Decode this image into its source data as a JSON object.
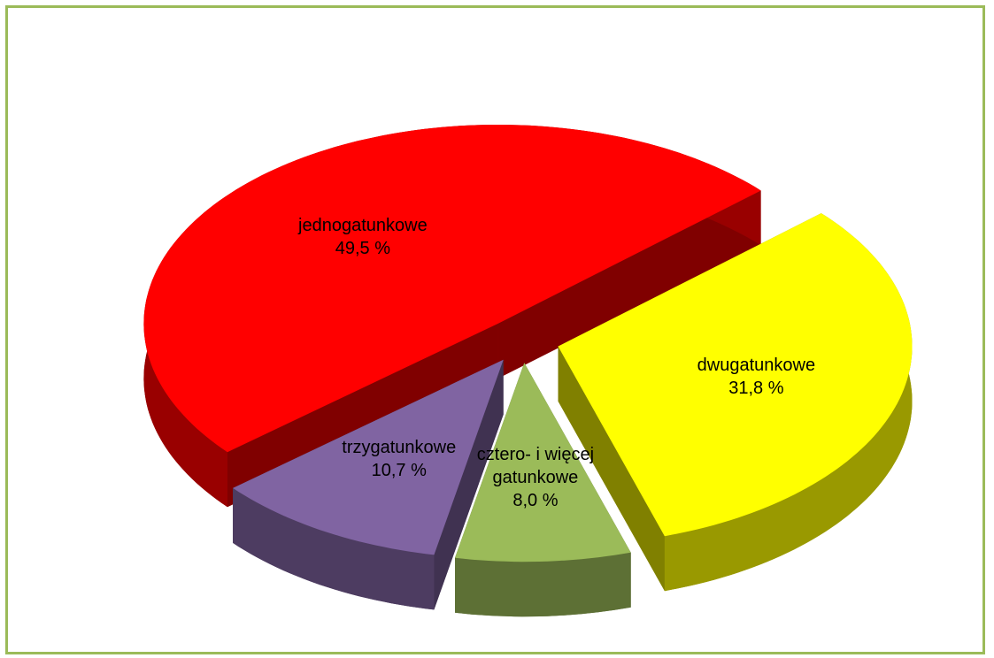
{
  "chart_data": {
    "type": "pie",
    "categories": [
      "dwugatunkowe",
      "cztero- i więcej gatunkowe",
      "trzygatunkowe",
      "jednogatunkowe"
    ],
    "values": [
      31.8,
      8.0,
      10.7,
      49.5
    ],
    "value_labels": [
      "31,8 %",
      "8,0 %",
      "10,7 %",
      "49,5 %"
    ],
    "colors": [
      "#ffff00",
      "#9bbb59",
      "#8064a2",
      "#ff0000"
    ]
  }
}
